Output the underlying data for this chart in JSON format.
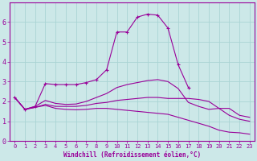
{
  "xlabel": "Windchill (Refroidissement éolien,°C)",
  "background_color": "#cce8e8",
  "grid_color": "#aad4d4",
  "line_color": "#990099",
  "xlim": [
    -0.5,
    23.5
  ],
  "ylim": [
    0,
    7
  ],
  "xticks": [
    0,
    1,
    2,
    3,
    4,
    5,
    6,
    7,
    8,
    9,
    10,
    11,
    12,
    13,
    14,
    15,
    16,
    17,
    18,
    19,
    20,
    21,
    22,
    23
  ],
  "yticks": [
    0,
    1,
    2,
    3,
    4,
    5,
    6
  ],
  "curve_peaked": {
    "x": [
      0,
      1,
      2,
      3,
      4,
      5,
      6,
      7,
      8,
      9,
      10,
      11,
      12,
      13,
      14,
      15,
      16,
      17
    ],
    "y": [
      2.2,
      1.6,
      1.75,
      2.9,
      2.85,
      2.85,
      2.85,
      2.95,
      3.1,
      3.6,
      5.5,
      5.5,
      6.25,
      6.4,
      6.35,
      5.7,
      3.85,
      2.7
    ]
  },
  "curve_flat_upper": {
    "x": [
      0,
      1,
      2,
      3,
      4,
      5,
      6,
      7,
      8,
      9,
      10,
      11,
      12,
      13,
      14,
      15,
      16,
      17,
      18,
      19,
      20,
      21,
      22,
      23
    ],
    "y": [
      2.2,
      1.6,
      1.75,
      2.05,
      1.9,
      1.85,
      1.87,
      2.0,
      2.2,
      2.4,
      2.7,
      2.85,
      2.95,
      3.05,
      3.1,
      3.0,
      2.65,
      1.95,
      1.75,
      1.6,
      1.65,
      1.65,
      1.3,
      1.2
    ]
  },
  "curve_flat_mid": {
    "x": [
      0,
      1,
      2,
      3,
      4,
      5,
      6,
      7,
      8,
      9,
      10,
      11,
      12,
      13,
      14,
      15,
      16,
      17,
      18,
      19,
      20,
      21,
      22,
      23
    ],
    "y": [
      2.2,
      1.6,
      1.7,
      1.85,
      1.75,
      1.75,
      1.75,
      1.8,
      1.9,
      1.95,
      2.05,
      2.1,
      2.15,
      2.2,
      2.2,
      2.15,
      2.15,
      2.15,
      2.1,
      2.0,
      1.65,
      1.3,
      1.1,
      1.0
    ]
  },
  "curve_declining": {
    "x": [
      0,
      1,
      2,
      3,
      4,
      5,
      6,
      7,
      8,
      9,
      10,
      11,
      12,
      13,
      14,
      15,
      16,
      17,
      18,
      19,
      20,
      21,
      22,
      23
    ],
    "y": [
      2.2,
      1.6,
      1.7,
      1.8,
      1.65,
      1.6,
      1.58,
      1.6,
      1.65,
      1.65,
      1.6,
      1.55,
      1.5,
      1.45,
      1.4,
      1.35,
      1.2,
      1.05,
      0.9,
      0.75,
      0.55,
      0.45,
      0.42,
      0.35
    ]
  }
}
